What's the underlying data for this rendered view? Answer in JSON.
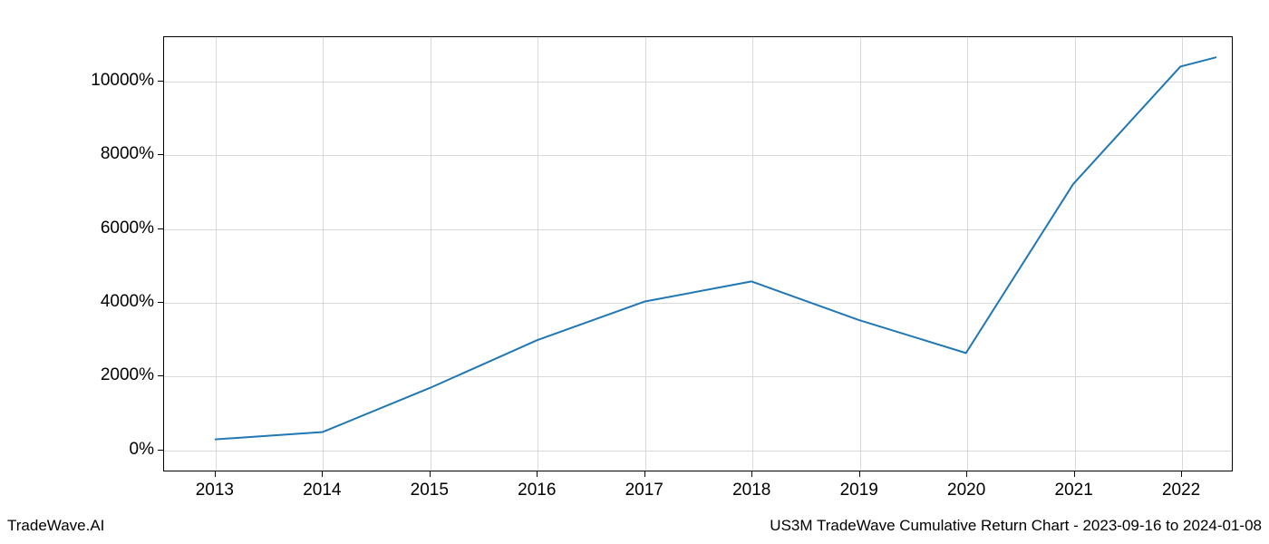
{
  "chart": {
    "type": "line",
    "background_color": "#ffffff",
    "border_color": "#000000",
    "grid_color": "#d9d9d9",
    "line_color": "#1f77b4",
    "line_width": 2,
    "tick_fontsize": 19,
    "y_ticks": [
      0,
      2000,
      4000,
      6000,
      8000,
      10000
    ],
    "y_tick_labels": [
      "0%",
      "2000%",
      "4000%",
      "6000%",
      "8000%",
      "10000%"
    ],
    "ylim": [
      -600,
      11200
    ],
    "x_ticks": [
      2013,
      2014,
      2015,
      2016,
      2017,
      2018,
      2019,
      2020,
      2021,
      2022
    ],
    "x_tick_labels": [
      "2013",
      "2014",
      "2015",
      "2016",
      "2017",
      "2018",
      "2019",
      "2020",
      "2021",
      "2022"
    ],
    "xlim": [
      2012.52,
      2022.48
    ],
    "data": {
      "x": [
        2013,
        2014,
        2015,
        2016,
        2017,
        2018,
        2019,
        2020,
        2021,
        2022,
        2022.33
      ],
      "y": [
        250,
        450,
        1650,
        2950,
        4000,
        4550,
        3500,
        2600,
        7200,
        10400,
        10650
      ]
    }
  },
  "footer": {
    "left": "TradeWave.AI",
    "right": "US3M TradeWave Cumulative Return Chart - 2023-09-16 to 2024-01-08"
  }
}
